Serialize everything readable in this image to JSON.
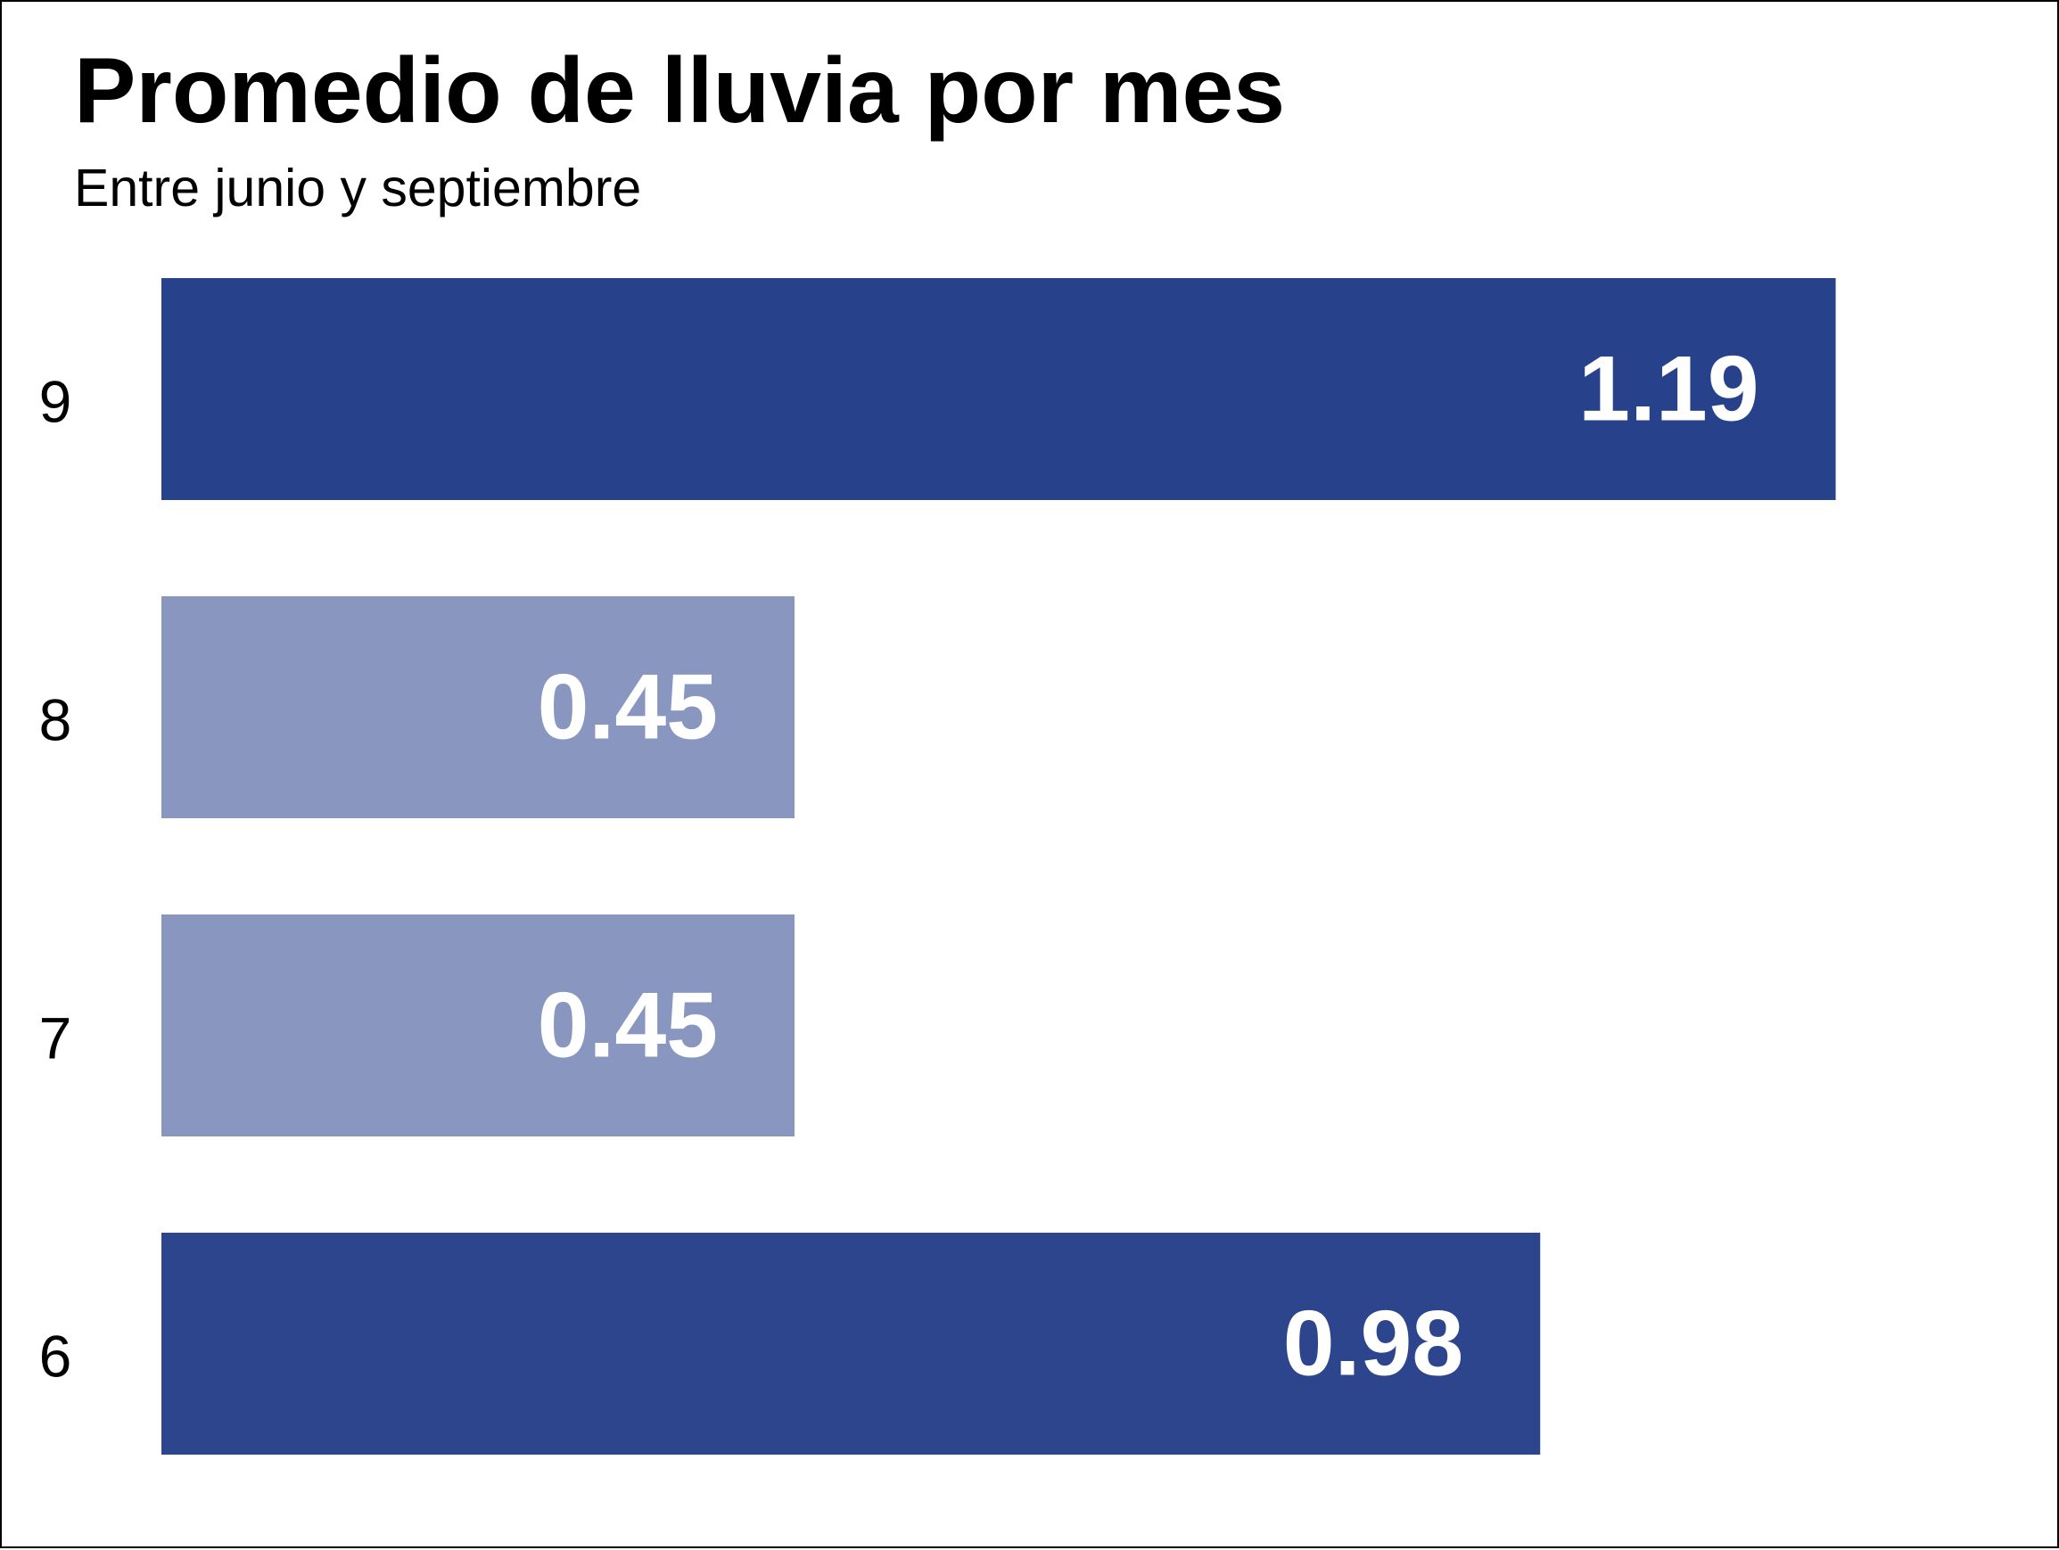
{
  "chart_data": {
    "type": "bar",
    "orientation": "horizontal",
    "title": "Promedio de lluvia por mes",
    "subtitle": "Entre junio y septiembre",
    "xlabel": "",
    "ylabel": "",
    "categories": [
      "9",
      "8",
      "7",
      "6"
    ],
    "values": [
      1.19,
      0.45,
      0.45,
      0.98
    ],
    "value_labels": [
      "1.19",
      "0.45",
      "0.45",
      "0.98"
    ],
    "xlim": [
      0,
      1.26
    ],
    "grid": false,
    "legend": "none",
    "colors": {
      "highlight": "#27418A",
      "muted": "#8896C0",
      "last_bar": "#2C458C",
      "label": "#ffffff"
    },
    "bar_color_roles": [
      "highlight",
      "muted",
      "muted",
      "last_bar"
    ]
  }
}
